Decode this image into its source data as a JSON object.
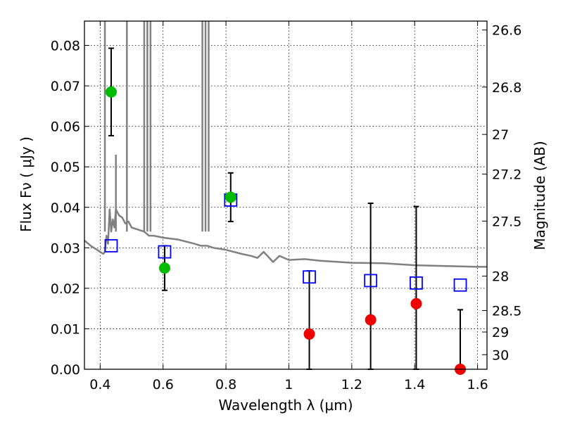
{
  "chart_data": {
    "type": "scatter",
    "xlabel": "Wavelength  λ (μm)",
    "ylabel": "Flux  Fν  ( μJy )",
    "y2label": "Magnitude (AB)",
    "xlim": [
      0.35,
      1.63
    ],
    "ylim": [
      0.0,
      0.086
    ],
    "grid": true,
    "x_ticks": [
      0.4,
      0.6,
      0.8,
      1.0,
      1.2,
      1.4,
      1.6
    ],
    "x_tick_labels": [
      "0.4",
      "0.6",
      "0.8",
      "1",
      "1.2",
      "1.4",
      "1.6"
    ],
    "y_ticks": [
      0.0,
      0.01,
      0.02,
      0.03,
      0.04,
      0.05,
      0.06,
      0.07,
      0.08
    ],
    "y_tick_labels": [
      "0.00",
      "0.01",
      "0.02",
      "0.03",
      "0.04",
      "0.05",
      "0.06",
      "0.07",
      "0.08"
    ],
    "y2_ticks": [
      {
        "label": "26.6",
        "flux": 0.0838
      },
      {
        "label": "26.8",
        "flux": 0.0697
      },
      {
        "label": "27",
        "flux": 0.058
      },
      {
        "label": "27.2",
        "flux": 0.0482
      },
      {
        "label": "27.5",
        "flux": 0.0366
      },
      {
        "label": "28",
        "flux": 0.023
      },
      {
        "label": "28.5",
        "flux": 0.0145
      },
      {
        "label": "29",
        "flux": 0.0092
      },
      {
        "label": "30",
        "flux": 0.0036
      }
    ],
    "series": [
      {
        "name": "model spectrum",
        "style": "line",
        "color": "#808080",
        "x": [
          0.35,
          0.37,
          0.39,
          0.41,
          0.415,
          0.42,
          0.425,
          0.43,
          0.435,
          0.44,
          0.445,
          0.45,
          0.46,
          0.47,
          0.48,
          0.49,
          0.5,
          0.52,
          0.54,
          0.555,
          0.57,
          0.6,
          0.65,
          0.7,
          0.72,
          0.74,
          0.76,
          0.8,
          0.85,
          0.88,
          0.9,
          0.92,
          0.95,
          0.97,
          1.0,
          1.05,
          1.1,
          1.2,
          1.3,
          1.4,
          1.5,
          1.6,
          1.63
        ],
        "y": [
          0.0318,
          0.0305,
          0.0295,
          0.0285,
          0.029,
          0.033,
          0.031,
          0.0395,
          0.034,
          0.037,
          0.035,
          0.0395,
          0.038,
          0.0375,
          0.036,
          0.0365,
          0.035,
          0.0345,
          0.034,
          0.033,
          0.033,
          0.0325,
          0.032,
          0.031,
          0.0305,
          0.0305,
          0.03,
          0.0295,
          0.0285,
          0.028,
          0.0275,
          0.029,
          0.0265,
          0.028,
          0.027,
          0.0272,
          0.0268,
          0.0263,
          0.0262,
          0.0257,
          0.0255,
          0.0253,
          0.0253
        ]
      },
      {
        "name": "model spectrum emission lines",
        "style": "lines",
        "color": "#808080",
        "x": [
          0.415,
          0.45,
          0.485,
          0.54,
          0.55,
          0.56,
          0.725,
          0.735,
          0.745
        ],
        "y": [
          0.086,
          0.053,
          0.086,
          0.086,
          0.086,
          0.086,
          0.086,
          0.086,
          0.086
        ]
      },
      {
        "name": "model photometry",
        "style": "open-square",
        "color": "#0000ff",
        "x": [
          0.435,
          0.605,
          0.815,
          1.065,
          1.26,
          1.405,
          1.545
        ],
        "y": [
          0.0305,
          0.029,
          0.0418,
          0.0228,
          0.0219,
          0.0213,
          0.0208
        ]
      },
      {
        "name": "detections",
        "style": "filled-circle",
        "color": "#00bb00",
        "x": [
          0.435,
          0.605,
          0.815
        ],
        "y": [
          0.0685,
          0.025,
          0.0425
        ],
        "err_low": [
          0.0108,
          0.0055,
          0.006
        ],
        "err_high": [
          0.0108,
          0.0055,
          0.006
        ]
      },
      {
        "name": "non-detections",
        "style": "filled-circle",
        "color": "#ee0000",
        "x": [
          1.065,
          1.26,
          1.405,
          1.545
        ],
        "y": [
          0.0087,
          0.0122,
          0.0162,
          0.0
        ],
        "err_low": [
          0.0087,
          0.0122,
          0.0162,
          0.0
        ],
        "err_high": [
          0.0156,
          0.0288,
          0.024,
          0.0147
        ]
      }
    ]
  }
}
